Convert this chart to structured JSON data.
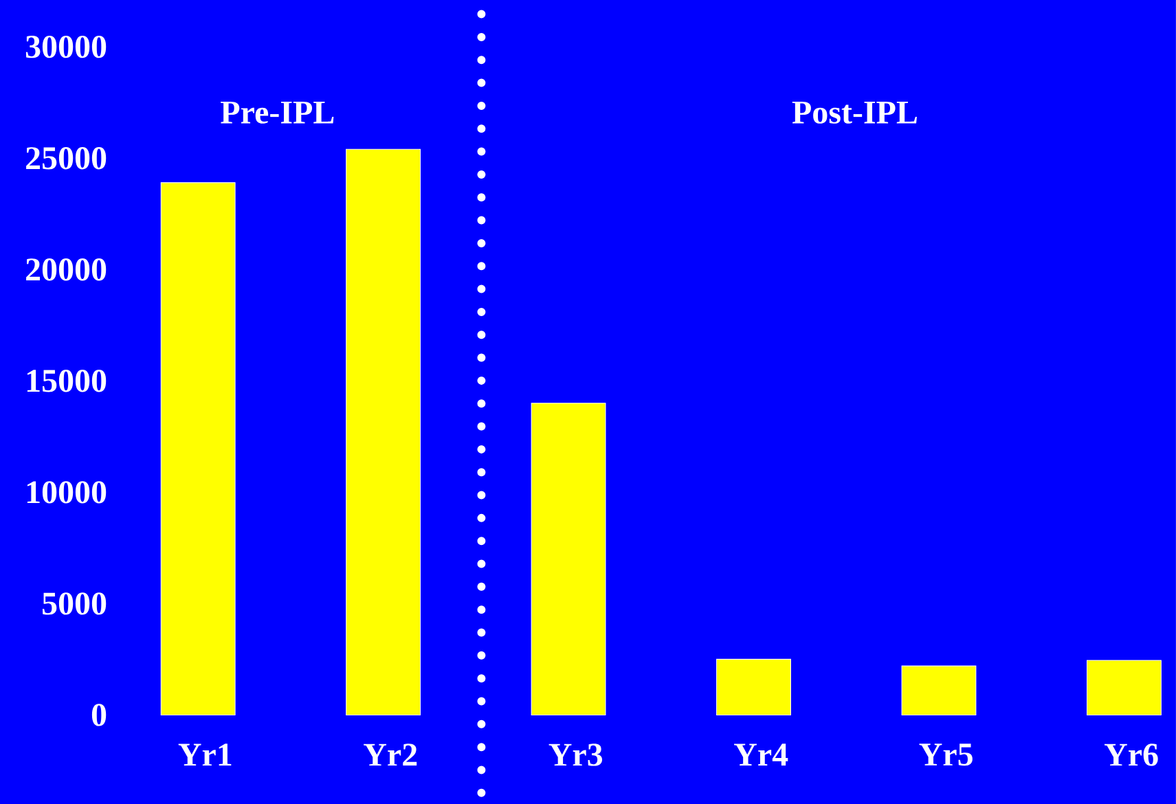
{
  "chart_data": {
    "type": "bar",
    "categories": [
      "Yr1",
      "Yr2",
      "Yr3",
      "Yr4",
      "Yr5",
      "Yr6"
    ],
    "values": [
      23900,
      25400,
      14000,
      2500,
      2200,
      2450
    ],
    "color": "#ffff00",
    "ylim": [
      -4000,
      32100
    ],
    "yticks": [
      0,
      5000,
      10000,
      15000,
      20000,
      25000,
      30000
    ],
    "annotations": [
      "Pre-IPL",
      "Post-IPL"
    ]
  }
}
